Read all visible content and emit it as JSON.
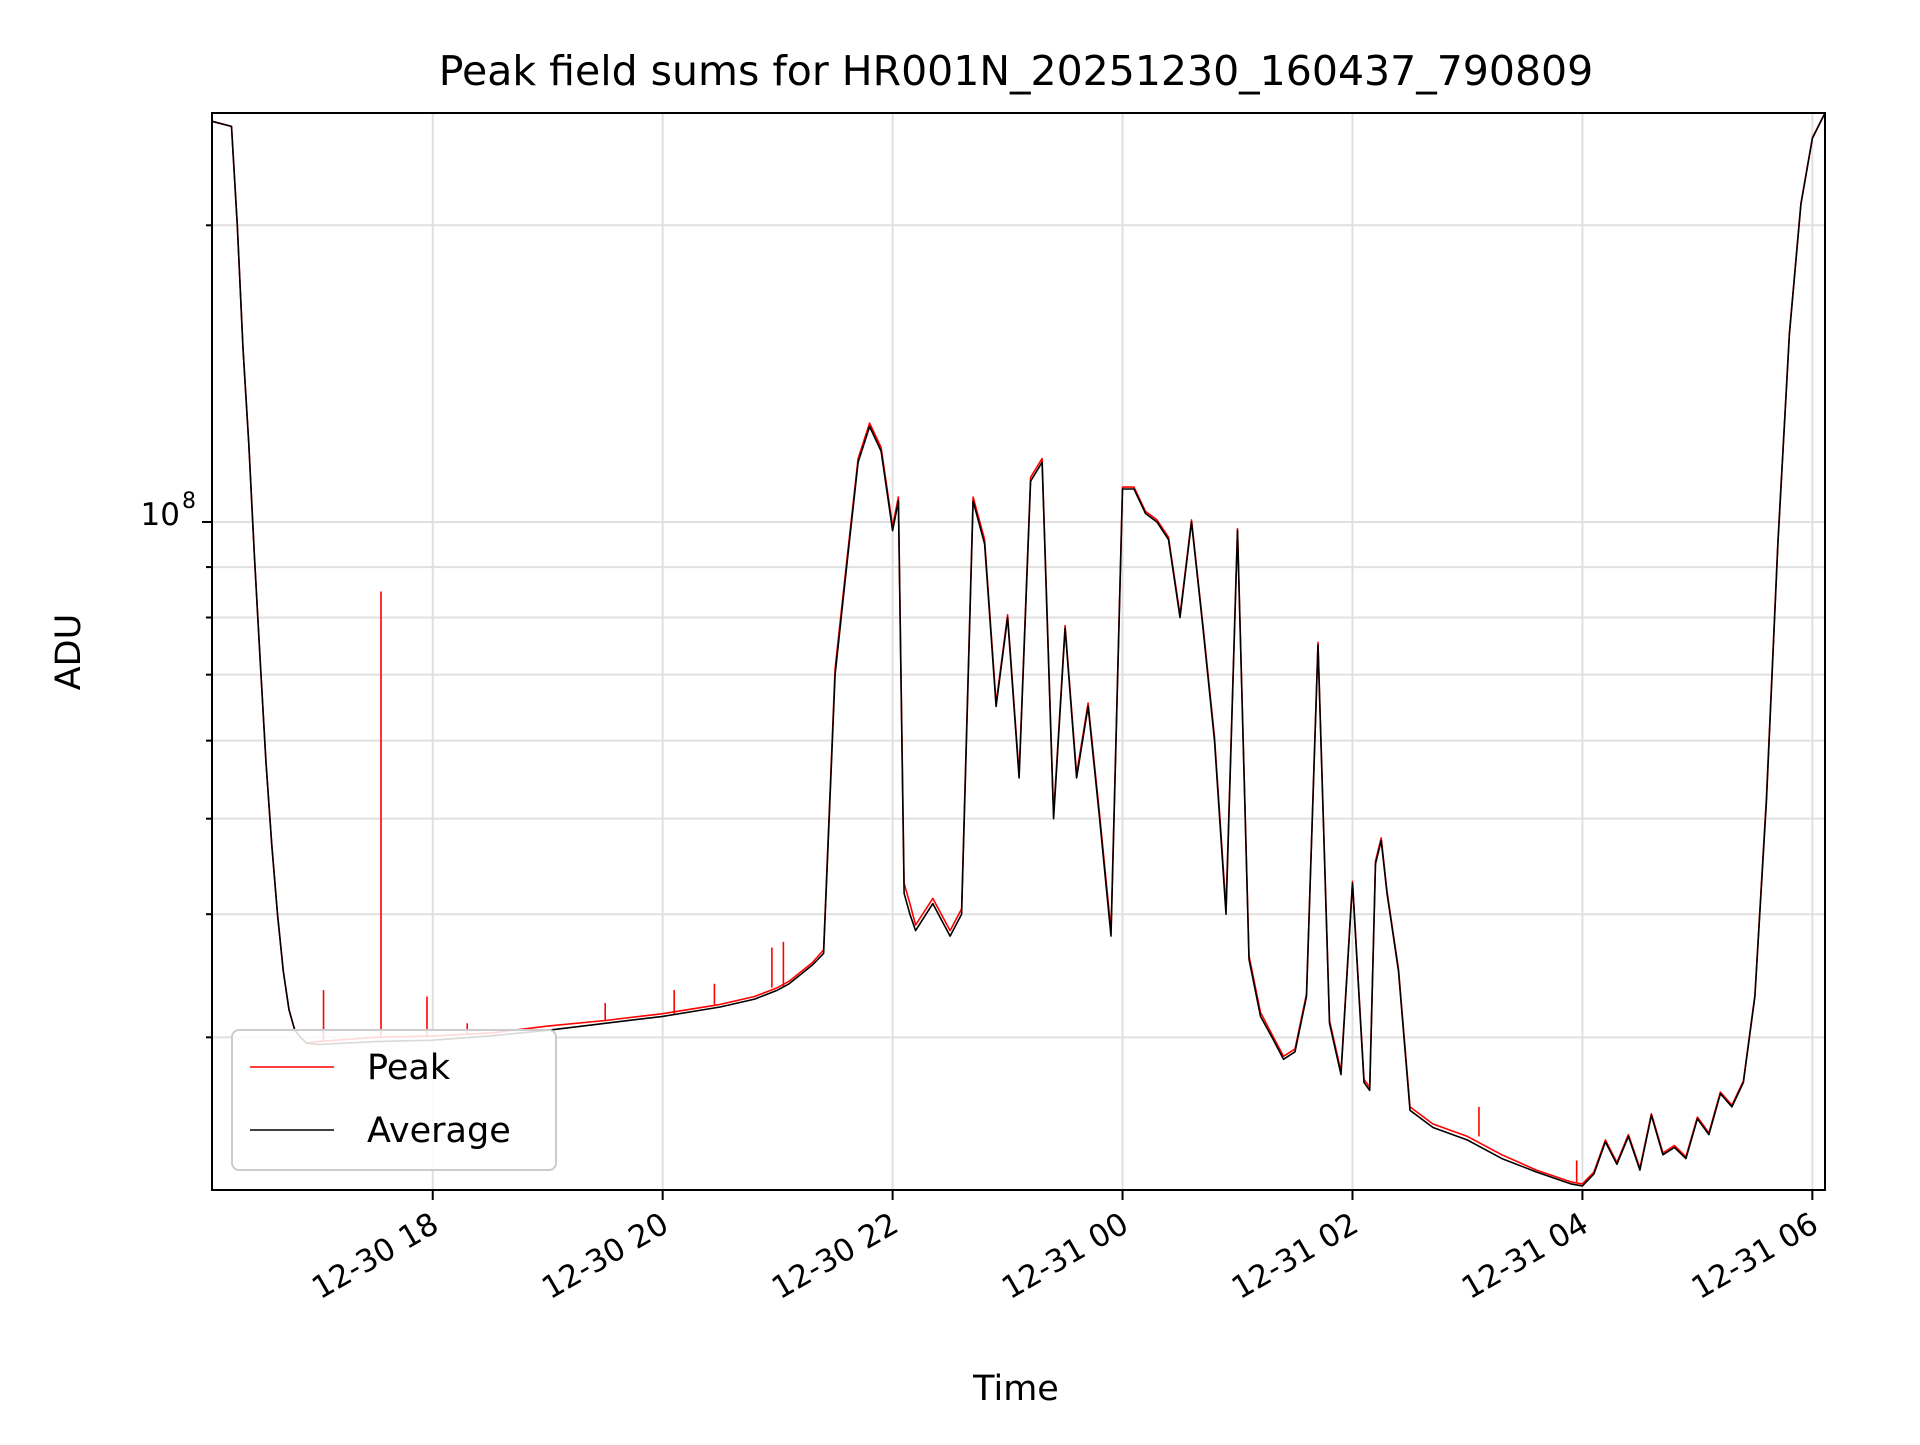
{
  "chart_data": {
    "type": "line",
    "title": "Peak field sums for HR001N_20251230_160437_790809",
    "xlabel": "Time",
    "ylabel": "ADU",
    "y_scale": "log",
    "x_unit": "hours since 12-30 16:00",
    "xlim": [
      16.08,
      30.11
    ],
    "ylim": [
      21000000,
      260000000
    ],
    "grid": true,
    "legend_position": "lower-left",
    "x_ticks": [
      {
        "value": 18,
        "label": "12-30 18"
      },
      {
        "value": 20,
        "label": "12-30 20"
      },
      {
        "value": 22,
        "label": "12-30 22"
      },
      {
        "value": 24,
        "label": "12-31 00"
      },
      {
        "value": 26,
        "label": "12-31 02"
      },
      {
        "value": 28,
        "label": "12-31 04"
      },
      {
        "value": 30,
        "label": "12-31 06"
      }
    ],
    "y_major_tick": {
      "value": 100000000,
      "base": "10",
      "exponent": "8"
    },
    "y_minor_ticks": [
      30000000,
      40000000,
      50000000,
      60000000,
      70000000,
      80000000,
      90000000,
      200000000
    ],
    "series": [
      {
        "name": "Average",
        "color": "#000000",
        "x": [
          16.08,
          16.25,
          16.3,
          16.35,
          16.4,
          16.45,
          16.5,
          16.55,
          16.6,
          16.65,
          16.7,
          16.75,
          16.8,
          16.85,
          16.9,
          17.0,
          17.5,
          18.0,
          18.5,
          19.0,
          19.5,
          20.0,
          20.5,
          20.8,
          21.0,
          21.1,
          21.3,
          21.4,
          21.5,
          21.6,
          21.7,
          21.8,
          21.9,
          22.0,
          22.05,
          22.1,
          22.15,
          22.2,
          22.35,
          22.5,
          22.6,
          22.7,
          22.8,
          22.9,
          23.0,
          23.1,
          23.2,
          23.3,
          23.4,
          23.5,
          23.6,
          23.7,
          23.8,
          23.9,
          24.0,
          24.1,
          24.2,
          24.3,
          24.4,
          24.5,
          24.6,
          24.7,
          24.8,
          24.9,
          25.0,
          25.1,
          25.2,
          25.3,
          25.4,
          25.5,
          25.6,
          25.7,
          25.8,
          25.9,
          26.0,
          26.1,
          26.15,
          26.2,
          26.25,
          26.3,
          26.4,
          26.5,
          26.7,
          27.0,
          27.3,
          27.6,
          27.9,
          28.0,
          28.1,
          28.2,
          28.3,
          28.4,
          28.5,
          28.6,
          28.7,
          28.8,
          28.9,
          29.0,
          29.1,
          29.2,
          29.3,
          29.4,
          29.5,
          29.6,
          29.7,
          29.8,
          29.9,
          30.0,
          30.11
        ],
        "values": [
          255000000,
          252000000,
          200000000,
          150000000,
          120000000,
          92000000,
          72000000,
          57000000,
          47000000,
          40000000,
          35000000,
          32000000,
          30500000,
          30000000,
          29600000,
          29500000,
          29700000,
          29800000,
          30100000,
          30500000,
          31000000,
          31500000,
          32200000,
          32800000,
          33500000,
          34000000,
          35500000,
          36500000,
          70000000,
          90000000,
          115000000,
          125000000,
          118000000,
          98000000,
          105000000,
          42000000,
          40000000,
          38500000,
          41000000,
          38000000,
          40000000,
          105000000,
          95000000,
          65000000,
          80000000,
          55000000,
          110000000,
          115000000,
          50000000,
          78000000,
          55000000,
          65000000,
          50000000,
          38000000,
          108000000,
          108000000,
          102000000,
          100000000,
          96000000,
          80000000,
          100000000,
          78000000,
          60000000,
          40000000,
          98000000,
          36000000,
          31500000,
          30000000,
          28500000,
          29000000,
          33000000,
          75000000,
          31000000,
          27500000,
          43000000,
          27000000,
          26500000,
          45000000,
          47500000,
          42000000,
          35000000,
          25300000,
          24300000,
          23600000,
          22600000,
          21900000,
          21300000,
          21200000,
          21800000,
          23500000,
          22300000,
          23800000,
          22000000,
          25000000,
          22800000,
          23200000,
          22600000,
          24800000,
          23900000,
          26300000,
          25500000,
          27000000,
          33000000,
          52000000,
          95000000,
          155000000,
          210000000,
          245000000,
          260000000
        ]
      },
      {
        "name": "Peak",
        "color": "#ff0000",
        "x": [
          16.08,
          16.25,
          16.3,
          16.35,
          16.4,
          16.45,
          16.5,
          16.55,
          16.6,
          16.65,
          16.7,
          16.75,
          16.8,
          16.85,
          16.9,
          17.0,
          17.5,
          18.0,
          18.5,
          19.0,
          19.5,
          20.0,
          20.5,
          20.8,
          21.0,
          21.1,
          21.3,
          21.4,
          21.5,
          21.6,
          21.7,
          21.8,
          21.9,
          22.0,
          22.05,
          22.1,
          22.15,
          22.2,
          22.35,
          22.5,
          22.6,
          22.7,
          22.8,
          22.9,
          23.0,
          23.1,
          23.2,
          23.3,
          23.4,
          23.5,
          23.6,
          23.7,
          23.8,
          23.9,
          24.0,
          24.1,
          24.2,
          24.3,
          24.4,
          24.5,
          24.6,
          24.7,
          24.8,
          24.9,
          25.0,
          25.1,
          25.2,
          25.3,
          25.4,
          25.5,
          25.6,
          25.7,
          25.8,
          25.9,
          26.0,
          26.1,
          26.15,
          26.2,
          26.25,
          26.3,
          26.4,
          26.5,
          26.7,
          27.0,
          27.3,
          27.6,
          27.9,
          28.0,
          28.1,
          28.2,
          28.3,
          28.4,
          28.5,
          28.6,
          28.7,
          28.8,
          28.9,
          29.0,
          29.1,
          29.2,
          29.3,
          29.4,
          29.5,
          29.6,
          29.7,
          29.8,
          29.9,
          30.0,
          30.11
        ],
        "values": [
          255000000,
          252000000,
          200000000,
          150000000,
          120000000,
          92000000,
          72000000,
          57000000,
          47000000,
          40000000,
          35000000,
          32000000,
          30500000,
          30000000,
          29600000,
          29700000,
          30000000,
          30100000,
          30300000,
          30800000,
          31200000,
          31700000,
          32400000,
          33000000,
          33700000,
          34200000,
          35700000,
          36800000,
          71000000,
          91000000,
          116000000,
          126000000,
          119000000,
          99000000,
          106000000,
          43000000,
          41000000,
          39000000,
          41500000,
          38500000,
          40500000,
          106000000,
          96000000,
          65500000,
          80500000,
          55500000,
          111000000,
          116000000,
          50500000,
          78500000,
          55500000,
          65500000,
          50500000,
          38500000,
          108500000,
          108500000,
          102500000,
          100500000,
          96500000,
          80500000,
          100500000,
          78500000,
          60500000,
          40500000,
          98500000,
          36300000,
          31800000,
          30200000,
          28700000,
          29200000,
          33200000,
          75500000,
          31200000,
          27700000,
          43200000,
          27200000,
          26700000,
          45300000,
          47800000,
          42200000,
          35200000,
          25500000,
          24500000,
          23800000,
          22800000,
          22000000,
          21400000,
          21300000,
          21900000,
          23600000,
          22400000,
          23900000,
          22100000,
          25100000,
          22900000,
          23300000,
          22700000,
          24900000,
          24000000,
          26400000,
          25600000,
          27100000,
          33100000,
          52500000,
          95500000,
          155500000,
          210500000,
          245500000,
          260000000
        ],
        "spikes": [
          {
            "x": 17.05,
            "value": 33500000
          },
          {
            "x": 17.55,
            "value": 85000000
          },
          {
            "x": 17.95,
            "value": 33000000
          },
          {
            "x": 18.3,
            "value": 31000000
          },
          {
            "x": 19.5,
            "value": 32500000
          },
          {
            "x": 20.1,
            "value": 33500000
          },
          {
            "x": 20.45,
            "value": 34000000
          },
          {
            "x": 20.95,
            "value": 37000000
          },
          {
            "x": 21.05,
            "value": 37500000
          },
          {
            "x": 27.1,
            "value": 25500000
          },
          {
            "x": 27.95,
            "value": 22500000
          }
        ]
      }
    ],
    "legend": [
      {
        "label": "Peak",
        "color": "#ff0000"
      },
      {
        "label": "Average",
        "color": "#000000"
      }
    ]
  }
}
